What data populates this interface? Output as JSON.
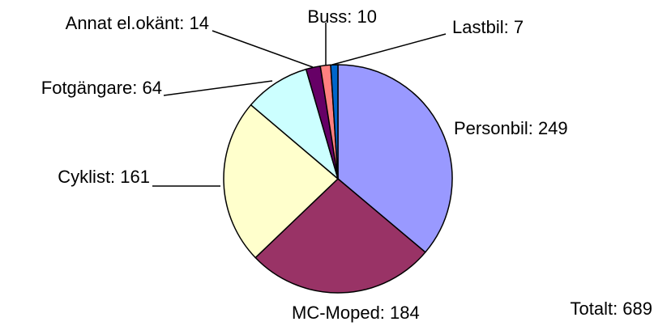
{
  "chart_data": {
    "type": "pie",
    "labels": [
      "Personbil: 249",
      "MC-Moped: 184",
      "Cyklist: 161",
      "Fotgängare: 64",
      "Annat el.okänt: 14",
      "Buss: 10",
      "Lastbil: 7"
    ],
    "values": [
      249,
      184,
      161,
      64,
      14,
      10,
      7
    ],
    "colors": [
      "#9999ff",
      "#993366",
      "#ffffcc",
      "#ccffff",
      "#660066",
      "#ff8080",
      "#0066cc"
    ],
    "annotation": "Totalt: 689"
  }
}
